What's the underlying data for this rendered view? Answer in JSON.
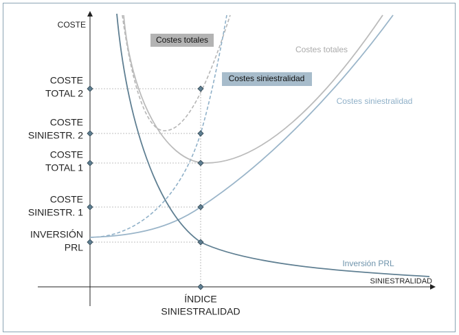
{
  "axes": {
    "y_label": "COSTE",
    "x_label": "SINIESTRALIDAD",
    "x_point": [
      "ÍNDICE",
      "SINIESTRALIDAD"
    ]
  },
  "y_levels": [
    [
      "COSTE",
      "TOTAL 2"
    ],
    [
      "COSTE",
      "SINIESTR. 2"
    ],
    [
      "COSTE",
      "TOTAL 1"
    ],
    [
      "COSTE",
      "SINIESTR. 1"
    ],
    [
      "INVERSIÓN",
      "PRL"
    ]
  ],
  "curve_labels": {
    "dashed_total": "Costes totales",
    "dashed_siniestralidad": "Costes siniestralidad",
    "total": "Costes totales",
    "siniestralidad": "Costes siniestralidad",
    "inversion": "Inversión PRL"
  }
}
